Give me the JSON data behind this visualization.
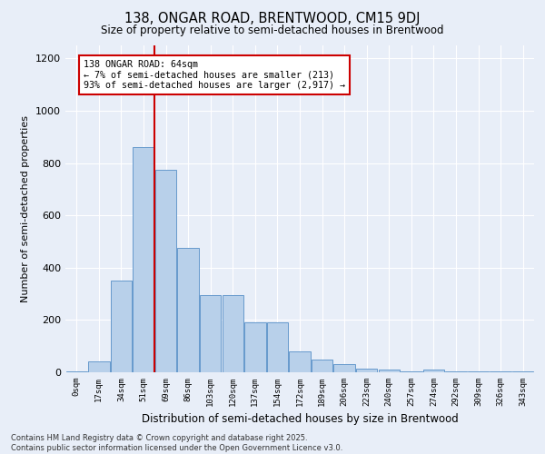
{
  "title1": "138, ONGAR ROAD, BRENTWOOD, CM15 9DJ",
  "title2": "Size of property relative to semi-detached houses in Brentwood",
  "xlabel": "Distribution of semi-detached houses by size in Brentwood",
  "ylabel": "Number of semi-detached properties",
  "bar_labels": [
    "0sqm",
    "17sqm",
    "34sqm",
    "51sqm",
    "69sqm",
    "86sqm",
    "103sqm",
    "120sqm",
    "137sqm",
    "154sqm",
    "172sqm",
    "189sqm",
    "206sqm",
    "223sqm",
    "240sqm",
    "257sqm",
    "274sqm",
    "292sqm",
    "309sqm",
    "326sqm",
    "343sqm"
  ],
  "bar_values": [
    5,
    40,
    350,
    860,
    775,
    475,
    295,
    295,
    190,
    190,
    80,
    50,
    30,
    15,
    10,
    5,
    10,
    2,
    5,
    2,
    2
  ],
  "bar_color": "#b8d0ea",
  "bar_edgecolor": "#6699cc",
  "vline_color": "#cc0000",
  "annotation_title": "138 ONGAR ROAD: 64sqm",
  "annotation_line1": "← 7% of semi-detached houses are smaller (213)",
  "annotation_line2": "93% of semi-detached houses are larger (2,917) →",
  "annotation_box_facecolor": "#ffffff",
  "annotation_box_edgecolor": "#cc0000",
  "ylim": [
    0,
    1250
  ],
  "yticks": [
    0,
    200,
    400,
    600,
    800,
    1000,
    1200
  ],
  "footer1": "Contains HM Land Registry data © Crown copyright and database right 2025.",
  "footer2": "Contains public sector information licensed under the Open Government Licence v3.0.",
  "bg_color": "#e8eef8",
  "grid_color": "#ffffff"
}
